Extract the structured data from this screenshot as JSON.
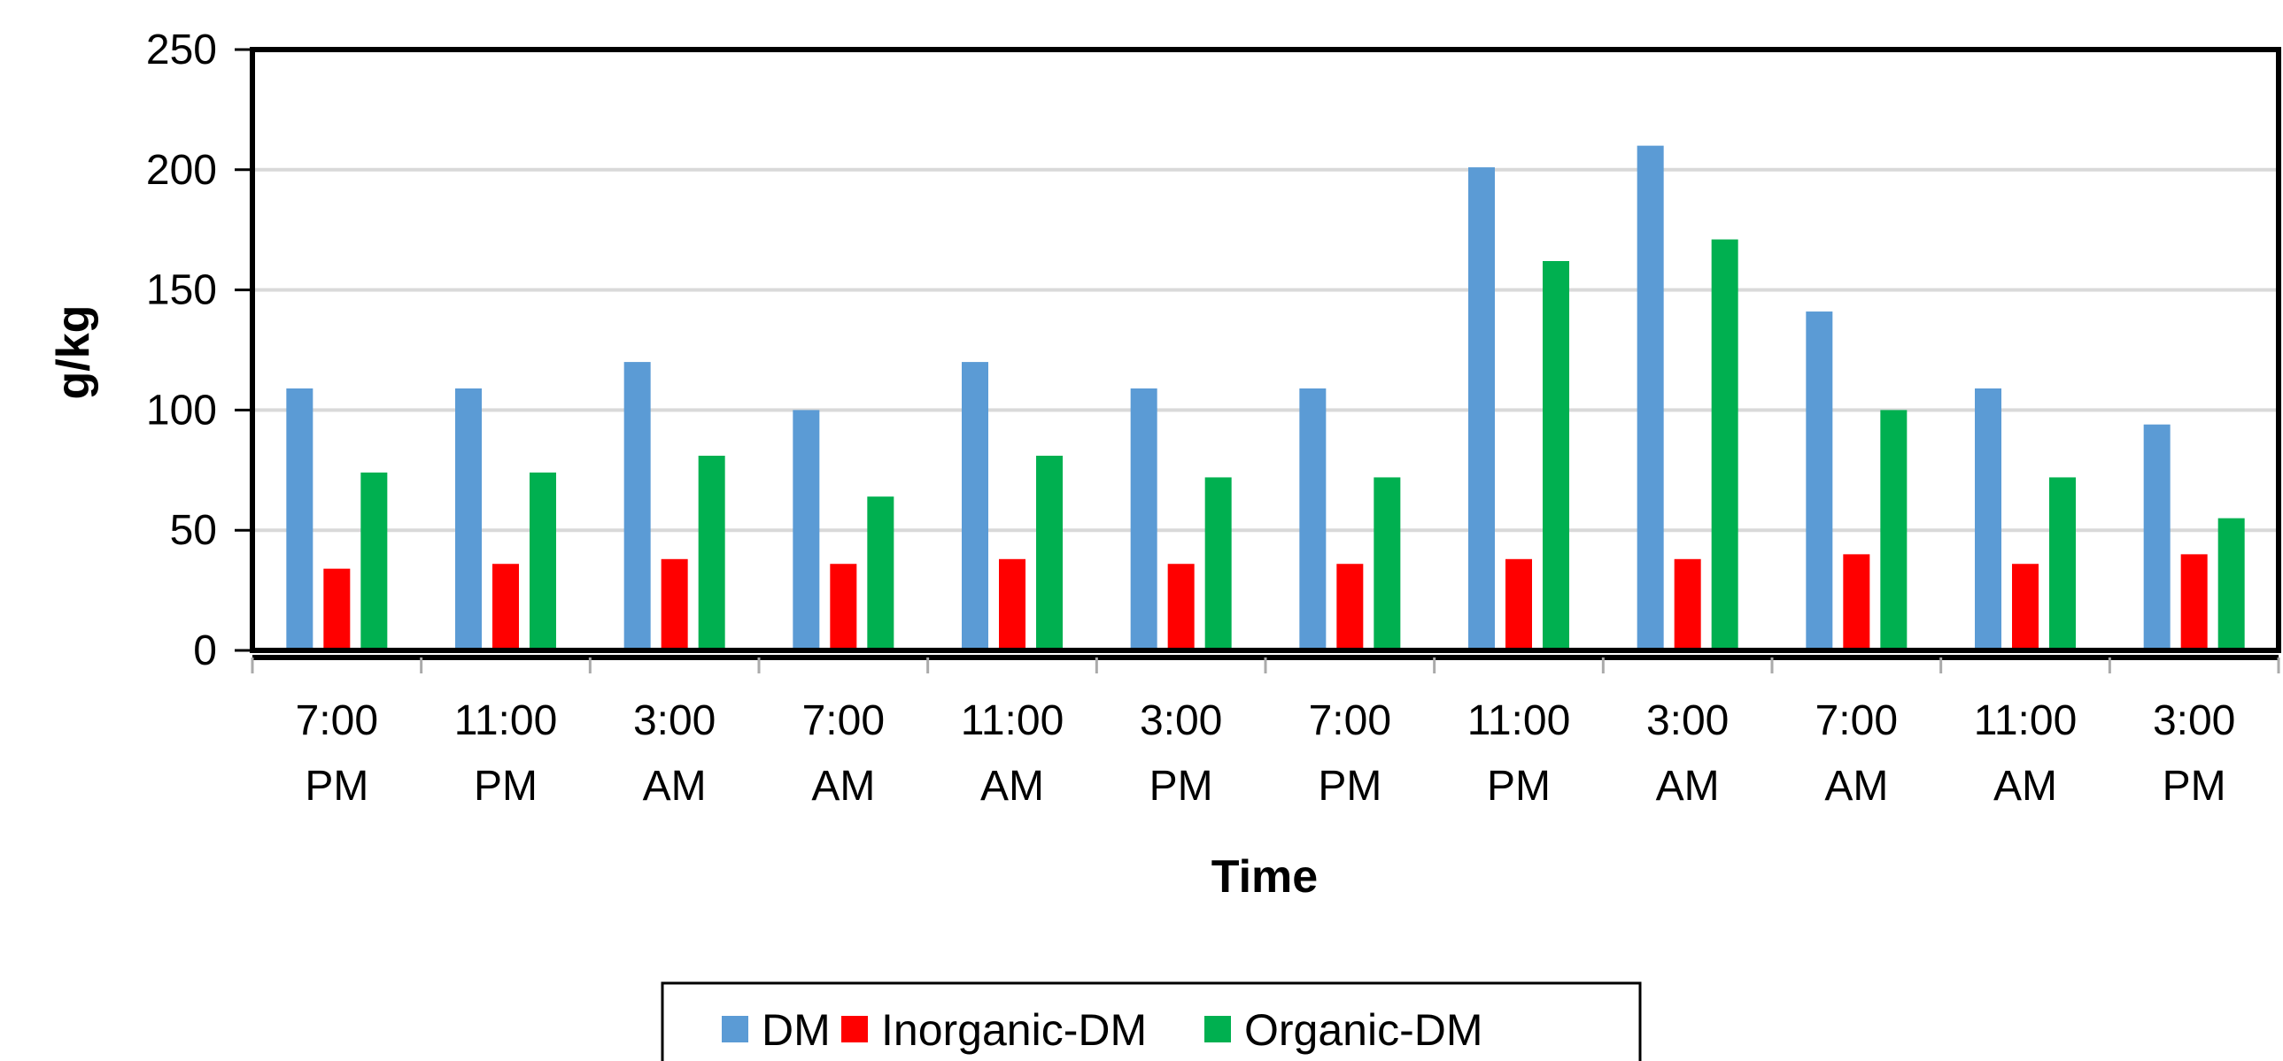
{
  "chart_data": {
    "type": "bar",
    "title": "",
    "xlabel": "Time",
    "ylabel": "g/kg",
    "ylim": [
      0,
      250
    ],
    "yticks": [
      0,
      50,
      100,
      150,
      200,
      250
    ],
    "grid": true,
    "legend_position": "bottom",
    "categories": [
      [
        "7:00",
        "PM"
      ],
      [
        "11:00",
        "PM"
      ],
      [
        "3:00",
        "AM"
      ],
      [
        "7:00",
        "AM"
      ],
      [
        "11:00",
        "AM"
      ],
      [
        "3:00",
        "PM"
      ],
      [
        "7:00",
        "PM"
      ],
      [
        "11:00",
        "PM"
      ],
      [
        "3:00",
        "AM"
      ],
      [
        "7:00",
        "AM"
      ],
      [
        "11:00",
        "AM"
      ],
      [
        "3:00",
        "PM"
      ]
    ],
    "series": [
      {
        "name": "DM",
        "color": "#5B9BD5",
        "values": [
          109,
          109,
          120,
          100,
          120,
          109,
          109,
          201,
          210,
          141,
          109,
          94
        ]
      },
      {
        "name": "Inorganic-DM",
        "color": "#FF0000",
        "values": [
          34,
          36,
          38,
          36,
          38,
          36,
          36,
          38,
          38,
          40,
          36,
          40
        ]
      },
      {
        "name": "Organic-DM",
        "color": "#00B050",
        "values": [
          74,
          74,
          81,
          64,
          81,
          72,
          72,
          162,
          171,
          100,
          72,
          55
        ]
      }
    ]
  }
}
